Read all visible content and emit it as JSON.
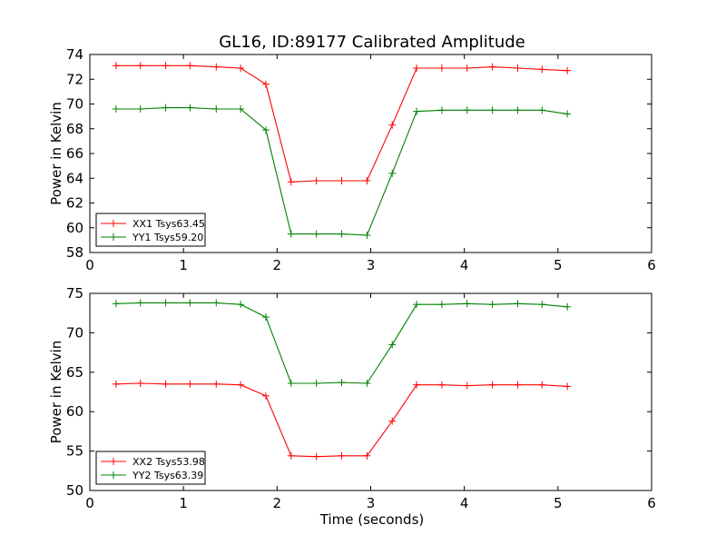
{
  "title": "GL16, ID:89177 Calibrated Amplitude",
  "xlabel": "Time (seconds)",
  "chart_data": [
    {
      "type": "line",
      "title": "GL16, ID:89177 Calibrated Amplitude",
      "xlabel": "",
      "ylabel": "Power in Kelvin",
      "xlim": [
        0,
        6
      ],
      "ylim": [
        58,
        74
      ],
      "xticks": [
        0,
        1,
        2,
        3,
        4,
        5,
        6
      ],
      "yticks": [
        58,
        60,
        62,
        64,
        66,
        68,
        70,
        72,
        74
      ],
      "grid": false,
      "legend_position": "bottom-left",
      "x": [
        0.28,
        0.54,
        0.81,
        1.07,
        1.35,
        1.61,
        1.88,
        2.15,
        2.42,
        2.69,
        2.96,
        3.23,
        3.49,
        3.76,
        4.03,
        4.3,
        4.57,
        4.83,
        5.1
      ],
      "series": [
        {
          "name": "XX1 Tsys63.45",
          "color": "#ff0000",
          "values": [
            73.1,
            73.1,
            73.1,
            73.1,
            73.0,
            72.9,
            71.6,
            63.7,
            63.8,
            63.8,
            63.8,
            68.3,
            72.9,
            72.9,
            72.9,
            73.0,
            72.9,
            72.8,
            72.7
          ]
        },
        {
          "name": "YY1 Tsys59.20",
          "color": "#008000",
          "values": [
            69.6,
            69.6,
            69.7,
            69.7,
            69.6,
            69.6,
            67.9,
            59.5,
            59.5,
            59.5,
            59.4,
            64.4,
            69.4,
            69.5,
            69.5,
            69.5,
            69.5,
            69.5,
            69.2
          ]
        }
      ]
    },
    {
      "type": "line",
      "title": "",
      "xlabel": "Time (seconds)",
      "ylabel": "Power in Kelvin",
      "xlim": [
        0,
        6
      ],
      "ylim": [
        50,
        75
      ],
      "xticks": [
        0,
        1,
        2,
        3,
        4,
        5,
        6
      ],
      "yticks": [
        50,
        55,
        60,
        65,
        70,
        75
      ],
      "grid": false,
      "legend_position": "bottom-left",
      "x": [
        0.28,
        0.54,
        0.81,
        1.07,
        1.35,
        1.61,
        1.88,
        2.15,
        2.42,
        2.69,
        2.96,
        3.23,
        3.49,
        3.76,
        4.03,
        4.3,
        4.57,
        4.83,
        5.1
      ],
      "series": [
        {
          "name": "XX2 Tsys53.98",
          "color": "#ff0000",
          "values": [
            63.5,
            63.6,
            63.5,
            63.5,
            63.5,
            63.4,
            62.0,
            54.4,
            54.3,
            54.4,
            54.4,
            58.8,
            63.4,
            63.4,
            63.3,
            63.4,
            63.4,
            63.4,
            63.2
          ]
        },
        {
          "name": "YY2 Tsys63.39",
          "color": "#008000",
          "values": [
            73.7,
            73.8,
            73.8,
            73.8,
            73.8,
            73.6,
            72.0,
            63.6,
            63.6,
            63.7,
            63.6,
            68.5,
            73.6,
            73.6,
            73.7,
            73.6,
            73.7,
            73.6,
            73.3
          ]
        }
      ]
    }
  ]
}
